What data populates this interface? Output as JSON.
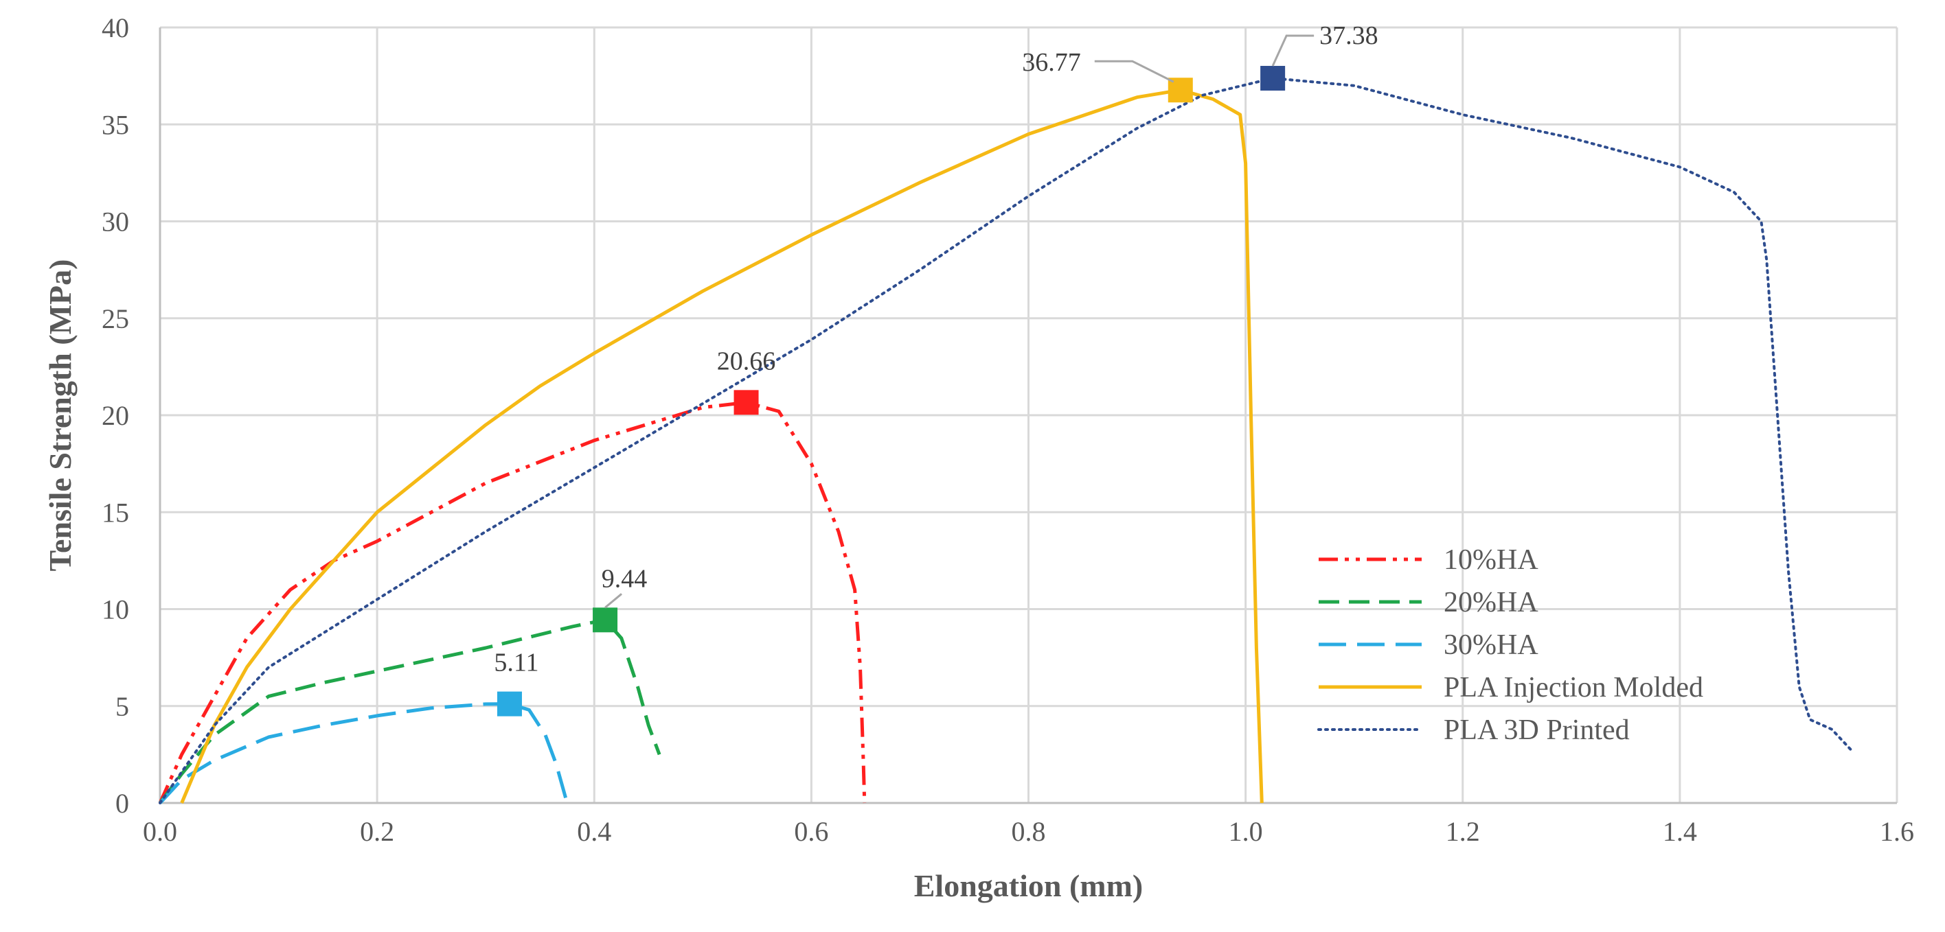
{
  "chart_data": {
    "type": "line",
    "title": "",
    "xlabel": "Elongation (mm)",
    "ylabel": "Tensile Strength (MPa)",
    "xlim": [
      0,
      1.6
    ],
    "ylim": [
      0,
      40
    ],
    "x_ticks": [
      0,
      0.2,
      0.4,
      0.6,
      0.8,
      1.0,
      1.2,
      1.4,
      1.6
    ],
    "x_tick_labels": [
      "0.0",
      "0.2",
      "0.4",
      "0.6",
      "0.8",
      "1.0",
      "1.2",
      "1.4",
      "1.6"
    ],
    "y_ticks": [
      0,
      5,
      10,
      15,
      20,
      25,
      30,
      35,
      40
    ],
    "y_tick_labels": [
      "0",
      "5",
      "10",
      "15",
      "20",
      "25",
      "30",
      "35",
      "40"
    ],
    "grid": true,
    "legend_position": "right-middle",
    "series": [
      {
        "name": "10%HA",
        "color": "#ff1f1f",
        "dash": "dash-dot-dot",
        "points": [
          [
            0,
            0
          ],
          [
            0.02,
            2.5
          ],
          [
            0.05,
            5.5
          ],
          [
            0.08,
            8.5
          ],
          [
            0.12,
            11
          ],
          [
            0.16,
            12.5
          ],
          [
            0.2,
            13.5
          ],
          [
            0.3,
            16.5
          ],
          [
            0.4,
            18.7
          ],
          [
            0.5,
            20.4
          ],
          [
            0.54,
            20.66
          ],
          [
            0.57,
            20.2
          ],
          [
            0.6,
            17.5
          ],
          [
            0.625,
            14
          ],
          [
            0.64,
            11
          ],
          [
            0.645,
            7
          ],
          [
            0.648,
            2
          ],
          [
            0.649,
            0
          ]
        ],
        "peak": {
          "x": 0.54,
          "y": 20.66,
          "label": "20.66"
        }
      },
      {
        "name": "20%HA",
        "color": "#1fa64a",
        "dash": "dash",
        "points": [
          [
            0,
            0
          ],
          [
            0.02,
            1.5
          ],
          [
            0.05,
            3.5
          ],
          [
            0.1,
            5.5
          ],
          [
            0.15,
            6.2
          ],
          [
            0.2,
            6.8
          ],
          [
            0.3,
            8.0
          ],
          [
            0.38,
            9.1
          ],
          [
            0.41,
            9.44
          ],
          [
            0.425,
            8.5
          ],
          [
            0.44,
            6.0
          ],
          [
            0.45,
            4.0
          ],
          [
            0.46,
            2.5
          ]
        ],
        "peak": {
          "x": 0.41,
          "y": 9.44,
          "label": "9.44"
        }
      },
      {
        "name": "30%HA",
        "color": "#29abe2",
        "dash": "long-dash",
        "points": [
          [
            0,
            0
          ],
          [
            0.02,
            1.2
          ],
          [
            0.05,
            2.2
          ],
          [
            0.1,
            3.4
          ],
          [
            0.15,
            4.0
          ],
          [
            0.2,
            4.5
          ],
          [
            0.25,
            4.9
          ],
          [
            0.3,
            5.1
          ],
          [
            0.322,
            5.11
          ],
          [
            0.34,
            4.8
          ],
          [
            0.355,
            3.5
          ],
          [
            0.365,
            2
          ],
          [
            0.375,
            0
          ]
        ],
        "peak": {
          "x": 0.322,
          "y": 5.11,
          "label": "5.11"
        }
      },
      {
        "name": "PLA Injection Molded",
        "color": "#f5b915",
        "dash": "solid",
        "points": [
          [
            0.02,
            0
          ],
          [
            0.05,
            4.0
          ],
          [
            0.08,
            7.0
          ],
          [
            0.12,
            10.0
          ],
          [
            0.2,
            15.0
          ],
          [
            0.3,
            19.5
          ],
          [
            0.35,
            21.5
          ],
          [
            0.4,
            23.2
          ],
          [
            0.5,
            26.4
          ],
          [
            0.6,
            29.3
          ],
          [
            0.7,
            32.0
          ],
          [
            0.8,
            34.5
          ],
          [
            0.9,
            36.4
          ],
          [
            0.94,
            36.77
          ],
          [
            0.97,
            36.3
          ],
          [
            0.995,
            35.5
          ],
          [
            1.0,
            33
          ],
          [
            1.005,
            20
          ],
          [
            1.01,
            8
          ],
          [
            1.015,
            0
          ]
        ],
        "peak": {
          "x": 0.94,
          "y": 36.77,
          "label": "36.77"
        }
      },
      {
        "name": "PLA 3D Printed",
        "color": "#2e4d8f",
        "dash": "dotted",
        "points": [
          [
            0,
            0
          ],
          [
            0.05,
            4.0
          ],
          [
            0.1,
            7.0
          ],
          [
            0.2,
            10.5
          ],
          [
            0.3,
            14.0
          ],
          [
            0.4,
            17.3
          ],
          [
            0.5,
            20.6
          ],
          [
            0.6,
            23.9
          ],
          [
            0.7,
            27.5
          ],
          [
            0.8,
            31.3
          ],
          [
            0.9,
            34.8
          ],
          [
            0.96,
            36.5
          ],
          [
            1.025,
            37.38
          ],
          [
            1.1,
            37.0
          ],
          [
            1.2,
            35.5
          ],
          [
            1.3,
            34.3
          ],
          [
            1.4,
            32.8
          ],
          [
            1.45,
            31.5
          ],
          [
            1.475,
            30
          ],
          [
            1.48,
            28
          ],
          [
            1.49,
            20
          ],
          [
            1.5,
            12
          ],
          [
            1.51,
            6
          ],
          [
            1.52,
            4.3
          ],
          [
            1.54,
            3.8
          ],
          [
            1.56,
            2.6
          ]
        ],
        "peak": {
          "x": 1.025,
          "y": 37.38,
          "label": "37.38"
        }
      }
    ]
  }
}
